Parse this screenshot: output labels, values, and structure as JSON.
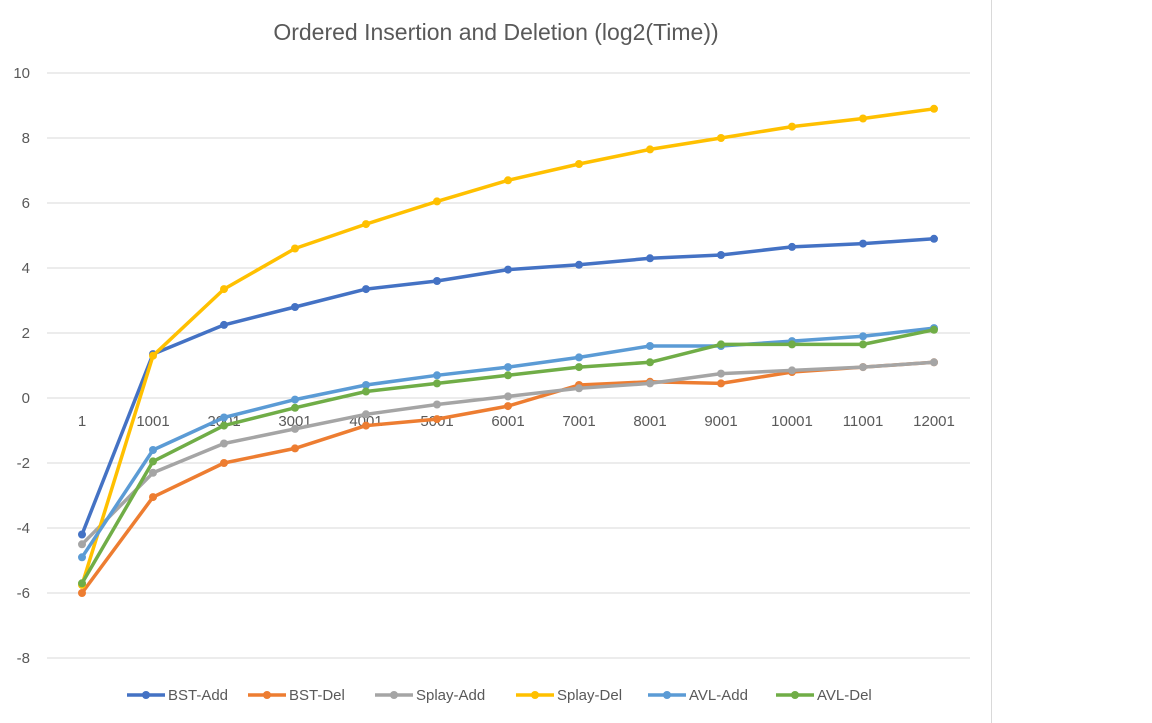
{
  "chart_data": {
    "type": "line",
    "title": "Ordered Insertion and Deletion (log2(Time))",
    "xlabel": "",
    "ylabel": "",
    "categories": [
      "1",
      "1001",
      "2001",
      "3001",
      "4001",
      "5001",
      "6001",
      "7001",
      "8001",
      "9001",
      "10001",
      "11001",
      "12001"
    ],
    "ylim": [
      -8,
      10
    ],
    "yticks": [
      -8,
      -6,
      -4,
      -2,
      0,
      2,
      4,
      6,
      8,
      10
    ],
    "grid": true,
    "legend_position": "bottom",
    "series": [
      {
        "name": "BST-Add",
        "color": "#4472C4",
        "values": [
          -4.2,
          1.35,
          2.25,
          2.8,
          3.35,
          3.6,
          3.95,
          4.1,
          4.3,
          4.4,
          4.65,
          4.75,
          4.9
        ]
      },
      {
        "name": "BST-Del",
        "color": "#ED7D31",
        "values": [
          -6.0,
          -3.05,
          -2.0,
          -1.55,
          -0.85,
          -0.65,
          -0.25,
          0.4,
          0.5,
          0.45,
          0.8,
          0.95,
          1.1
        ]
      },
      {
        "name": "Splay-Add",
        "color": "#A5A5A5",
        "values": [
          -4.5,
          -2.3,
          -1.4,
          -0.95,
          -0.5,
          -0.2,
          0.05,
          0.3,
          0.45,
          0.75,
          0.85,
          0.95,
          1.1
        ]
      },
      {
        "name": "Splay-Del",
        "color": "#FFC000",
        "values": [
          -5.75,
          1.3,
          3.35,
          4.6,
          5.35,
          6.05,
          6.7,
          7.2,
          7.65,
          8.0,
          8.35,
          8.6,
          8.9
        ]
      },
      {
        "name": "AVL-Add",
        "color": "#5B9BD5",
        "values": [
          -4.9,
          -1.6,
          -0.6,
          -0.05,
          0.4,
          0.7,
          0.95,
          1.25,
          1.6,
          1.6,
          1.75,
          1.9,
          2.15
        ]
      },
      {
        "name": "AVL-Del",
        "color": "#70AD47",
        "values": [
          -5.7,
          -1.95,
          -0.85,
          -0.3,
          0.2,
          0.45,
          0.7,
          0.95,
          1.1,
          1.65,
          1.65,
          1.65,
          2.1
        ]
      }
    ]
  }
}
